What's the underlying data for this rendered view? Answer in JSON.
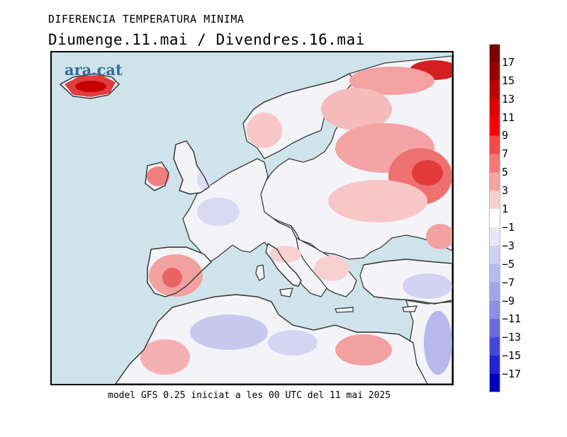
{
  "header": {
    "title": "DIFERENCIA TEMPERATURA MINIMA",
    "subtitle": "Diumenge.11.mai  /  Divendres.16.mai"
  },
  "map": {
    "brand": "ara.cat",
    "region": "Europe, North Africa and Middle East",
    "colors": {
      "sea": "#cfe3ea",
      "land_neutral": "#f2f1f7",
      "coastline": "#3a3a3a"
    },
    "warm_regions": [
      "Iceland",
      "Scandinavia north",
      "Baltic states",
      "Russia west",
      "Ukraine",
      "Iberian Peninsula",
      "Ireland",
      "North Africa south"
    ],
    "cool_regions": [
      "France",
      "Central Europe",
      "Algeria interior",
      "Turkey",
      "Middle East east"
    ]
  },
  "legend": {
    "ticks": [
      "17",
      "15",
      "13",
      "11",
      "9",
      "7",
      "5",
      "3",
      "1",
      "−1",
      "−3",
      "−5",
      "−7",
      "−9",
      "−11",
      "−13",
      "−15",
      "−17"
    ],
    "colors": [
      "#7a0000",
      "#9b0000",
      "#bb0000",
      "#dc0000",
      "#ff0000",
      "#f04a4a",
      "#f27777",
      "#f5a3a3",
      "#f9d0d0",
      "#ffffff",
      "#e6e6fa",
      "#d0d0f4",
      "#babaee",
      "#a4a4e8",
      "#8e8ee2",
      "#6a6adc",
      "#4646d6",
      "#2323d0",
      "#0000bb"
    ]
  },
  "footer": {
    "text": "model GFS 0.25 iniciat a les 00 UTC del 11 mai 2025"
  }
}
